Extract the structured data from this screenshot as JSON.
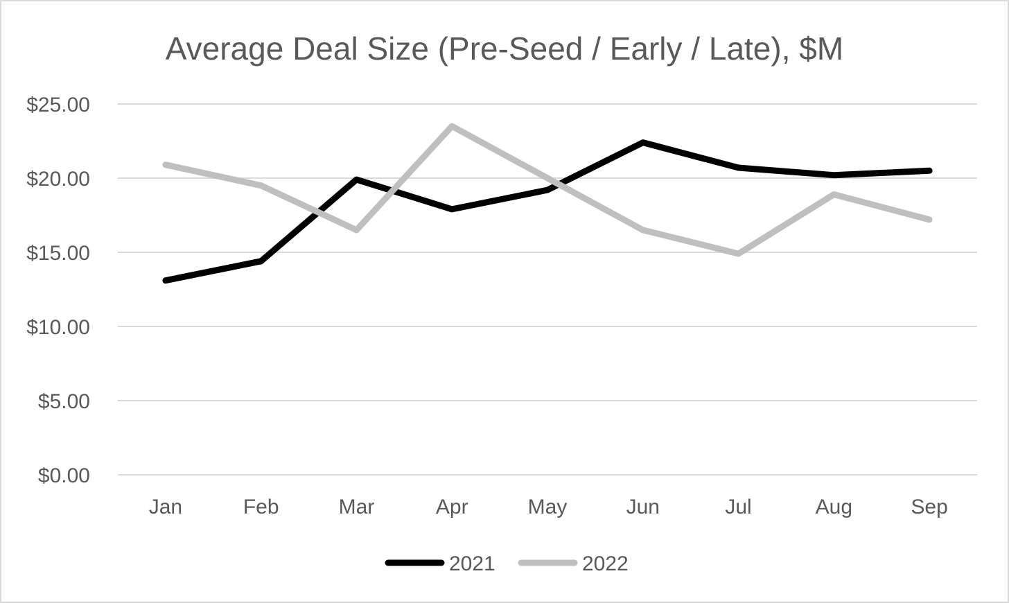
{
  "chart_data": {
    "type": "line",
    "title": "Average Deal Size (Pre-Seed / Early / Late), $M",
    "xlabel": "",
    "ylabel": "",
    "categories": [
      "Jan",
      "Feb",
      "Mar",
      "Apr",
      "May",
      "Jun",
      "Jul",
      "Aug",
      "Sep"
    ],
    "y_ticks": [
      "$0.00",
      "$5.00",
      "$10.00",
      "$15.00",
      "$20.00",
      "$25.00"
    ],
    "ylim": [
      0,
      25
    ],
    "grid": true,
    "legend_position": "bottom",
    "series": [
      {
        "name": "2021",
        "color": "#000000",
        "values": [
          13.1,
          14.4,
          19.9,
          17.9,
          19.2,
          22.4,
          20.7,
          20.2,
          20.5
        ]
      },
      {
        "name": "2022",
        "color": "#bfbfbf",
        "values": [
          20.9,
          19.5,
          16.5,
          23.5,
          20.0,
          16.5,
          14.9,
          18.9,
          17.2
        ]
      }
    ]
  }
}
